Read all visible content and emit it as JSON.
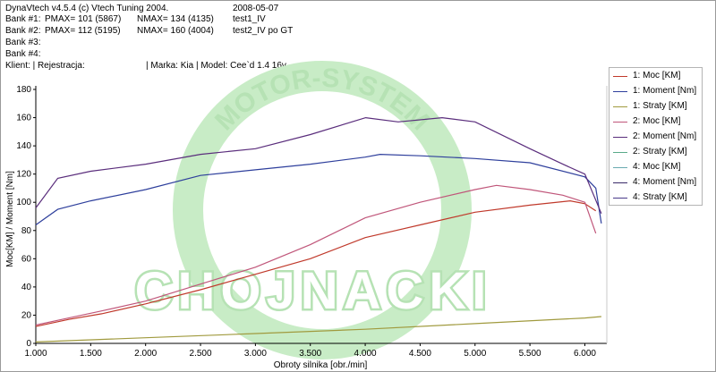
{
  "header": {
    "app_title": "DynaVtech v4.5.4 (c) Vtech Tuning 2004.",
    "date": "2008-05-07",
    "bank1_label": "Bank #1:",
    "bank1_pmax": "PMAX= 101 (5867)",
    "bank1_nmax": "NMAX= 134 (4135)",
    "bank1_name": "test1_IV",
    "bank2_label": "Bank #2:",
    "bank2_pmax": "PMAX= 112 (5195)",
    "bank2_nmax": "NMAX= 160 (4004)",
    "bank2_name": "test2_IV po GT",
    "bank3_label": "Bank #3:",
    "bank4_label": "Bank #4:",
    "client_line": "Klient:  | Rejestracja:",
    "car_line": "| Marka: Kia | Model: Cee`d 1.4 16v"
  },
  "watermark": {
    "arc_text": "MOTOR-SYSTEM",
    "brand_text": "CHOJNACKI",
    "color": "#c8ecc6"
  },
  "chart_data": {
    "type": "line",
    "xlabel": "Obroty silnika [obr./min]",
    "ylabel": "Moc[KM] / Moment [Nm]",
    "xlim": [
      1000,
      6200
    ],
    "ylim": [
      0,
      180
    ],
    "x_ticks": [
      1000,
      1500,
      2000,
      2500,
      3000,
      3500,
      4000,
      4500,
      5000,
      5500,
      6000
    ],
    "x_tick_labels": [
      "1.000",
      "1.500",
      "2.000",
      "2.500",
      "3.000",
      "3.500",
      "4.000",
      "4.500",
      "5.000",
      "5.500",
      "6.000"
    ],
    "y_ticks": [
      0,
      20,
      40,
      60,
      80,
      100,
      120,
      140,
      160,
      180
    ],
    "y_tick_labels": [
      "0",
      "20",
      "40",
      "60",
      "80",
      "100",
      "120",
      "140",
      "160",
      "180"
    ],
    "grid": false,
    "legend_position": "right",
    "series": [
      {
        "name": "1: Moc [KM]",
        "color": "#c0392b",
        "points": [
          [
            1000,
            12
          ],
          [
            1300,
            17
          ],
          [
            1600,
            21
          ],
          [
            2000,
            28
          ],
          [
            2500,
            38
          ],
          [
            3000,
            49
          ],
          [
            3500,
            60
          ],
          [
            4000,
            75
          ],
          [
            4500,
            84
          ],
          [
            5000,
            93
          ],
          [
            5500,
            98
          ],
          [
            5867,
            101
          ],
          [
            6000,
            99
          ],
          [
            6100,
            94
          ]
        ]
      },
      {
        "name": "1: Moment [Nm]",
        "color": "#2e3f9c",
        "points": [
          [
            1000,
            84
          ],
          [
            1200,
            95
          ],
          [
            1500,
            101
          ],
          [
            2000,
            109
          ],
          [
            2500,
            119
          ],
          [
            3000,
            123
          ],
          [
            3500,
            127
          ],
          [
            4000,
            132
          ],
          [
            4135,
            134
          ],
          [
            4500,
            133
          ],
          [
            5000,
            131
          ],
          [
            5500,
            128
          ],
          [
            6000,
            118
          ],
          [
            6100,
            110
          ],
          [
            6150,
            85
          ]
        ]
      },
      {
        "name": "1: Straty [KM]",
        "color": "#a09a3e",
        "points": [
          [
            1000,
            1
          ],
          [
            2000,
            4
          ],
          [
            3000,
            7
          ],
          [
            4000,
            10
          ],
          [
            5000,
            14
          ],
          [
            6000,
            18
          ],
          [
            6150,
            19
          ]
        ]
      },
      {
        "name": "2: Moc [KM]",
        "color": "#c0567a",
        "points": [
          [
            1000,
            13
          ],
          [
            1300,
            18
          ],
          [
            1600,
            23
          ],
          [
            2000,
            30
          ],
          [
            2500,
            42
          ],
          [
            3000,
            54
          ],
          [
            3500,
            70
          ],
          [
            4000,
            89
          ],
          [
            4500,
            100
          ],
          [
            5000,
            109
          ],
          [
            5195,
            112
          ],
          [
            5500,
            109
          ],
          [
            5800,
            105
          ],
          [
            6000,
            100
          ],
          [
            6100,
            78
          ]
        ]
      },
      {
        "name": "2: Moment [Nm]",
        "color": "#5a2d7c",
        "points": [
          [
            1000,
            96
          ],
          [
            1200,
            117
          ],
          [
            1500,
            122
          ],
          [
            2000,
            127
          ],
          [
            2500,
            134
          ],
          [
            3000,
            138
          ],
          [
            3500,
            148
          ],
          [
            4004,
            160
          ],
          [
            4300,
            157
          ],
          [
            4700,
            160
          ],
          [
            5000,
            157
          ],
          [
            5500,
            138
          ],
          [
            5800,
            127
          ],
          [
            6000,
            120
          ],
          [
            6150,
            92
          ]
        ]
      },
      {
        "name": "2: Straty [KM]",
        "color": "#5aaa8a",
        "points": []
      },
      {
        "name": "4: Moc [KM]",
        "color": "#6aaab0",
        "points": []
      },
      {
        "name": "4: Moment [Nm]",
        "color": "#3a2a6a",
        "points": []
      },
      {
        "name": "4: Straty [KM]",
        "color": "#4a3a8a",
        "points": []
      }
    ]
  }
}
